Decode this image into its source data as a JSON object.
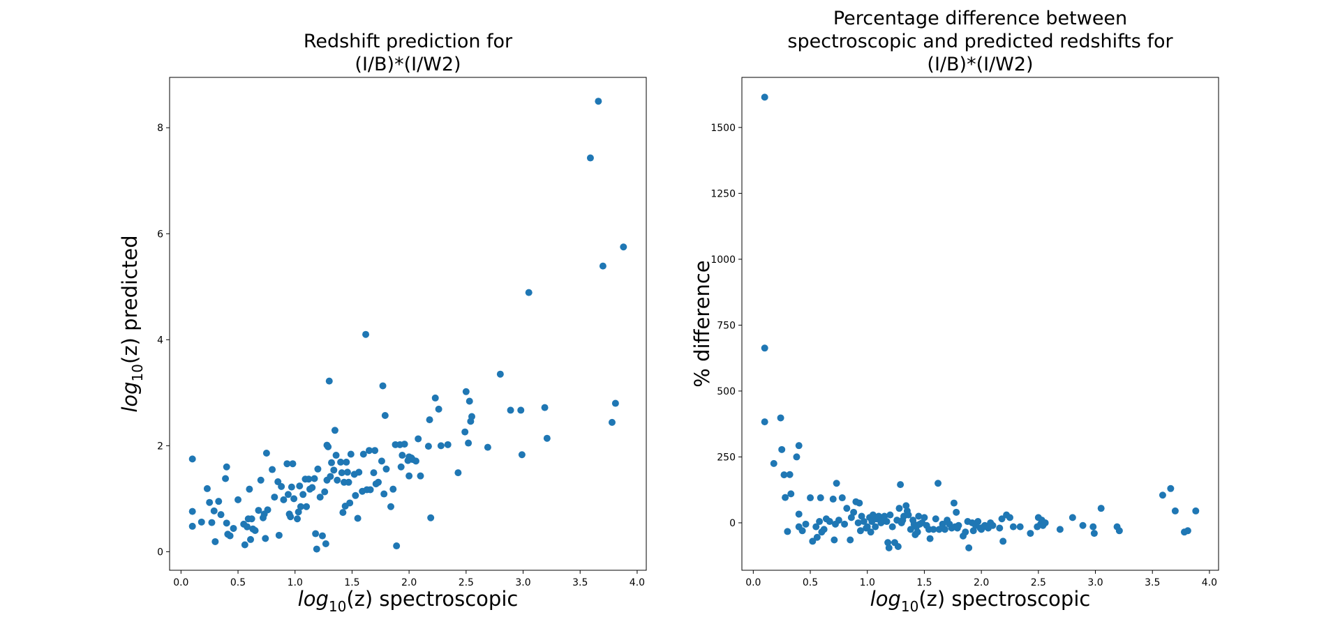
{
  "chart_data": [
    {
      "type": "scatter",
      "title_lines": [
        "Redshift prediction for",
        "(I/B)*(I/W2)"
      ],
      "xlabel": {
        "base": "log",
        "sub": "10",
        "rest": "(z) spectroscopic"
      },
      "ylabel": {
        "base": "log",
        "sub": "10",
        "rest": "(z) predicted"
      },
      "xlim": [
        -0.1,
        4.08
      ],
      "ylim": [
        -0.35,
        8.95
      ],
      "xticks": [
        0.0,
        0.5,
        1.0,
        1.5,
        2.0,
        2.5,
        3.0,
        3.5,
        4.0
      ],
      "xtick_labels": [
        "0.0",
        "0.5",
        "1.0",
        "1.5",
        "2.0",
        "2.5",
        "3.0",
        "3.5",
        "4.0"
      ],
      "yticks": [
        0,
        2,
        4,
        6,
        8
      ],
      "ytick_labels": [
        "0",
        "2",
        "4",
        "6",
        "8"
      ],
      "grid": false,
      "color": "#1f77b4",
      "points": [
        [
          0.1,
          1.75
        ],
        [
          0.1,
          0.76
        ],
        [
          0.1,
          0.48
        ],
        [
          0.18,
          0.56
        ],
        [
          0.23,
          1.19
        ],
        [
          0.25,
          0.93
        ],
        [
          0.27,
          0.55
        ],
        [
          0.29,
          0.77
        ],
        [
          0.3,
          0.19
        ],
        [
          0.33,
          0.95
        ],
        [
          0.35,
          0.7
        ],
        [
          0.39,
          1.38
        ],
        [
          0.4,
          1.6
        ],
        [
          0.4,
          0.54
        ],
        [
          0.41,
          0.33
        ],
        [
          0.43,
          0.3
        ],
        [
          0.46,
          0.44
        ],
        [
          0.5,
          0.98
        ],
        [
          0.55,
          0.52
        ],
        [
          0.56,
          0.13
        ],
        [
          0.58,
          0.47
        ],
        [
          0.59,
          0.62
        ],
        [
          0.6,
          1.18
        ],
        [
          0.61,
          0.23
        ],
        [
          0.62,
          0.62
        ],
        [
          0.63,
          0.43
        ],
        [
          0.65,
          0.4
        ],
        [
          0.68,
          0.78
        ],
        [
          0.7,
          1.35
        ],
        [
          0.72,
          0.64
        ],
        [
          0.73,
          0.71
        ],
        [
          0.74,
          0.25
        ],
        [
          0.75,
          1.86
        ],
        [
          0.76,
          0.79
        ],
        [
          0.8,
          1.55
        ],
        [
          0.82,
          1.03
        ],
        [
          0.85,
          1.32
        ],
        [
          0.86,
          0.31
        ],
        [
          0.88,
          1.23
        ],
        [
          0.9,
          0.98
        ],
        [
          0.93,
          1.66
        ],
        [
          0.94,
          1.08
        ],
        [
          0.95,
          0.71
        ],
        [
          0.96,
          0.66
        ],
        [
          0.97,
          1.22
        ],
        [
          0.98,
          1.66
        ],
        [
          0.99,
          1.0
        ],
        [
          1.02,
          0.62
        ],
        [
          1.03,
          0.75
        ],
        [
          1.04,
          1.24
        ],
        [
          1.05,
          0.85
        ],
        [
          1.07,
          1.08
        ],
        [
          1.09,
          1.37
        ],
        [
          1.1,
          0.85
        ],
        [
          1.12,
          1.37
        ],
        [
          1.13,
          1.18
        ],
        [
          1.15,
          1.21
        ],
        [
          1.17,
          1.38
        ],
        [
          1.18,
          0.34
        ],
        [
          1.19,
          0.05
        ],
        [
          1.2,
          1.56
        ],
        [
          1.22,
          1.03
        ],
        [
          1.24,
          0.3
        ],
        [
          1.26,
          1.13
        ],
        [
          1.27,
          0.15
        ],
        [
          1.28,
          1.35
        ],
        [
          1.28,
          2.01
        ],
        [
          1.29,
          1.98
        ],
        [
          1.3,
          3.22
        ],
        [
          1.31,
          1.42
        ],
        [
          1.32,
          1.68
        ],
        [
          1.34,
          1.54
        ],
        [
          1.35,
          2.29
        ],
        [
          1.36,
          1.82
        ],
        [
          1.37,
          1.35
        ],
        [
          1.4,
          1.69
        ],
        [
          1.41,
          1.49
        ],
        [
          1.42,
          0.74
        ],
        [
          1.43,
          1.31
        ],
        [
          1.44,
          0.86
        ],
        [
          1.45,
          1.69
        ],
        [
          1.46,
          1.5
        ],
        [
          1.47,
          1.31
        ],
        [
          1.48,
          0.92
        ],
        [
          1.49,
          1.84
        ],
        [
          1.52,
          1.46
        ],
        [
          1.53,
          1.06
        ],
        [
          1.55,
          0.63
        ],
        [
          1.56,
          1.5
        ],
        [
          1.59,
          1.14
        ],
        [
          1.6,
          1.84
        ],
        [
          1.62,
          4.1
        ],
        [
          1.63,
          1.17
        ],
        [
          1.65,
          1.91
        ],
        [
          1.66,
          1.17
        ],
        [
          1.69,
          1.49
        ],
        [
          1.7,
          1.91
        ],
        [
          1.71,
          1.28
        ],
        [
          1.73,
          1.31
        ],
        [
          1.76,
          1.71
        ],
        [
          1.77,
          3.13
        ],
        [
          1.78,
          1.09
        ],
        [
          1.79,
          2.57
        ],
        [
          1.8,
          1.56
        ],
        [
          1.84,
          0.85
        ],
        [
          1.86,
          1.18
        ],
        [
          1.88,
          2.02
        ],
        [
          1.89,
          0.11
        ],
        [
          1.92,
          2.02
        ],
        [
          1.93,
          1.6
        ],
        [
          1.94,
          1.82
        ],
        [
          1.96,
          2.03
        ],
        [
          1.99,
          1.72
        ],
        [
          2.0,
          1.79
        ],
        [
          2.0,
          1.43
        ],
        [
          2.02,
          1.77
        ],
        [
          2.03,
          1.74
        ],
        [
          2.06,
          1.71
        ],
        [
          2.08,
          2.13
        ],
        [
          2.1,
          1.43
        ],
        [
          2.17,
          1.99
        ],
        [
          2.18,
          2.49
        ],
        [
          2.19,
          0.64
        ],
        [
          2.23,
          2.9
        ],
        [
          2.26,
          2.69
        ],
        [
          2.28,
          2.0
        ],
        [
          2.34,
          2.02
        ],
        [
          2.43,
          1.49
        ],
        [
          2.49,
          2.26
        ],
        [
          2.5,
          3.02
        ],
        [
          2.52,
          2.05
        ],
        [
          2.53,
          2.84
        ],
        [
          2.54,
          2.46
        ],
        [
          2.55,
          2.55
        ],
        [
          2.69,
          1.97
        ],
        [
          2.8,
          3.35
        ],
        [
          2.89,
          2.67
        ],
        [
          2.98,
          2.67
        ],
        [
          2.99,
          1.83
        ],
        [
          3.05,
          4.89
        ],
        [
          3.19,
          2.72
        ],
        [
          3.21,
          2.14
        ],
        [
          3.59,
          7.43
        ],
        [
          3.66,
          8.5
        ],
        [
          3.7,
          5.39
        ],
        [
          3.78,
          2.44
        ],
        [
          3.81,
          2.8
        ],
        [
          3.88,
          5.75
        ]
      ]
    },
    {
      "type": "scatter",
      "title_lines": [
        "Percentage difference between",
        "spectroscopic and predicted redshifts for",
        "(I/B)*(I/W2)"
      ],
      "xlabel": {
        "base": "log",
        "sub": "10",
        "rest": "(z) spectroscopic"
      },
      "ylabel": {
        "text": "% difference"
      },
      "xlim": [
        -0.1,
        4.08
      ],
      "ylim": [
        -180,
        1690
      ],
      "xticks": [
        0.0,
        0.5,
        1.0,
        1.5,
        2.0,
        2.5,
        3.0,
        3.5,
        4.0
      ],
      "xtick_labels": [
        "0.0",
        "0.5",
        "1.0",
        "1.5",
        "2.0",
        "2.5",
        "3.0",
        "3.5",
        "4.0"
      ],
      "yticks": [
        0,
        250,
        500,
        750,
        1000,
        1250,
        1500
      ],
      "ytick_labels": [
        "0",
        "250",
        "500",
        "750",
        "1000",
        "1250",
        "1500"
      ],
      "grid": false,
      "color": "#1f77b4",
      "points": [
        [
          0.1,
          1615
        ],
        [
          0.1,
          663
        ],
        [
          0.1,
          383
        ],
        [
          0.18,
          225
        ],
        [
          0.24,
          398
        ],
        [
          0.25,
          278
        ],
        [
          0.27,
          182
        ],
        [
          0.28,
          96
        ],
        [
          0.3,
          -33
        ],
        [
          0.32,
          183
        ],
        [
          0.33,
          110
        ],
        [
          0.38,
          250
        ],
        [
          0.4,
          293
        ],
        [
          0.4,
          33
        ],
        [
          0.4,
          -15
        ],
        [
          0.43,
          -30
        ],
        [
          0.46,
          -5
        ],
        [
          0.5,
          95
        ],
        [
          0.52,
          -70
        ],
        [
          0.55,
          -15
        ],
        [
          0.56,
          -55
        ],
        [
          0.58,
          5
        ],
        [
          0.59,
          95
        ],
        [
          0.6,
          -35
        ],
        [
          0.62,
          -25
        ],
        [
          0.64,
          15
        ],
        [
          0.67,
          5
        ],
        [
          0.7,
          90
        ],
        [
          0.71,
          -65
        ],
        [
          0.72,
          -5
        ],
        [
          0.73,
          150
        ],
        [
          0.75,
          10
        ],
        [
          0.78,
          95
        ],
        [
          0.8,
          -5
        ],
        [
          0.82,
          55
        ],
        [
          0.85,
          -65
        ],
        [
          0.86,
          20
        ],
        [
          0.88,
          40
        ],
        [
          0.9,
          80
        ],
        [
          0.92,
          0
        ],
        [
          0.93,
          75
        ],
        [
          0.94,
          -30
        ],
        [
          0.95,
          25
        ],
        [
          0.97,
          5
        ],
        [
          0.99,
          -20
        ],
        [
          1.0,
          -15
        ],
        [
          1.02,
          20
        ],
        [
          1.03,
          -35
        ],
        [
          1.04,
          5
        ],
        [
          1.05,
          30
        ],
        [
          1.07,
          -15
        ],
        [
          1.08,
          15
        ],
        [
          1.1,
          25
        ],
        [
          1.12,
          0
        ],
        [
          1.13,
          10
        ],
        [
          1.15,
          25
        ],
        [
          1.17,
          5
        ],
        [
          1.18,
          -75
        ],
        [
          1.19,
          -95
        ],
        [
          1.2,
          30
        ],
        [
          1.22,
          -15
        ],
        [
          1.24,
          -75
        ],
        [
          1.26,
          10
        ],
        [
          1.27,
          -90
        ],
        [
          1.28,
          55
        ],
        [
          1.29,
          145
        ],
        [
          1.3,
          0
        ],
        [
          1.31,
          10
        ],
        [
          1.32,
          25
        ],
        [
          1.34,
          65
        ],
        [
          1.35,
          45
        ],
        [
          1.36,
          30
        ],
        [
          1.38,
          -25
        ],
        [
          1.4,
          10
        ],
        [
          1.41,
          -5
        ],
        [
          1.42,
          -45
        ],
        [
          1.43,
          -15
        ],
        [
          1.44,
          -35
        ],
        [
          1.45,
          25
        ],
        [
          1.46,
          -5
        ],
        [
          1.48,
          0
        ],
        [
          1.5,
          20
        ],
        [
          1.52,
          -10
        ],
        [
          1.54,
          -25
        ],
        [
          1.55,
          -60
        ],
        [
          1.58,
          -25
        ],
        [
          1.6,
          15
        ],
        [
          1.62,
          150
        ],
        [
          1.63,
          -25
        ],
        [
          1.66,
          -5
        ],
        [
          1.68,
          -25
        ],
        [
          1.7,
          10
        ],
        [
          1.72,
          -5
        ],
        [
          1.74,
          -20
        ],
        [
          1.76,
          75
        ],
        [
          1.77,
          -15
        ],
        [
          1.78,
          40
        ],
        [
          1.79,
          -20
        ],
        [
          1.8,
          -10
        ],
        [
          1.84,
          -50
        ],
        [
          1.86,
          -35
        ],
        [
          1.88,
          5
        ],
        [
          1.89,
          -95
        ],
        [
          1.92,
          0
        ],
        [
          1.93,
          -30
        ],
        [
          1.95,
          -10
        ],
        [
          1.97,
          5
        ],
        [
          1.99,
          -20
        ],
        [
          2.0,
          -25
        ],
        [
          2.02,
          -15
        ],
        [
          2.03,
          -10
        ],
        [
          2.06,
          -20
        ],
        [
          2.08,
          0
        ],
        [
          2.1,
          -10
        ],
        [
          2.16,
          -20
        ],
        [
          2.18,
          15
        ],
        [
          2.19,
          -70
        ],
        [
          2.22,
          30
        ],
        [
          2.25,
          20
        ],
        [
          2.28,
          -15
        ],
        [
          2.34,
          -15
        ],
        [
          2.43,
          -40
        ],
        [
          2.49,
          -15
        ],
        [
          2.5,
          20
        ],
        [
          2.52,
          -5
        ],
        [
          2.53,
          10
        ],
        [
          2.54,
          -10
        ],
        [
          2.56,
          0
        ],
        [
          2.69,
          -25
        ],
        [
          2.8,
          20
        ],
        [
          2.89,
          -10
        ],
        [
          2.98,
          -15
        ],
        [
          2.99,
          -40
        ],
        [
          3.05,
          55
        ],
        [
          3.19,
          -15
        ],
        [
          3.21,
          -30
        ],
        [
          3.59,
          105
        ],
        [
          3.66,
          130
        ],
        [
          3.7,
          45
        ],
        [
          3.78,
          -35
        ],
        [
          3.81,
          -30
        ],
        [
          3.88,
          45
        ]
      ]
    }
  ]
}
